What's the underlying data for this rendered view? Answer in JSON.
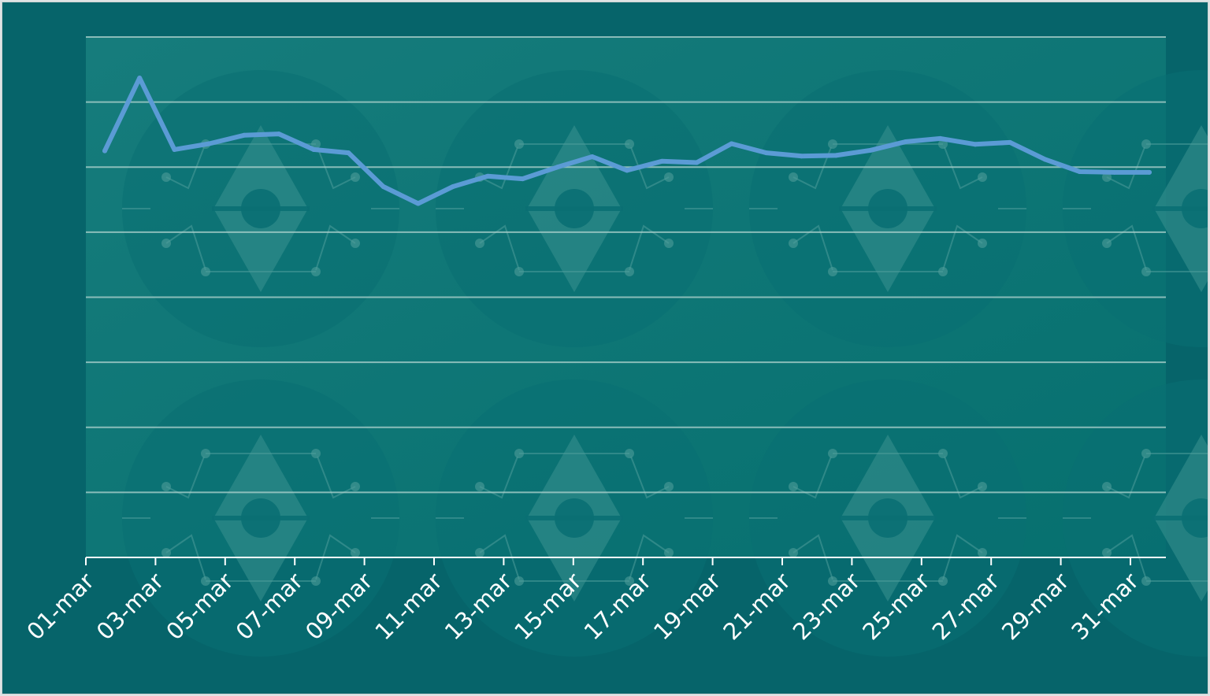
{
  "chart_data": {
    "type": "line",
    "title": "",
    "xlabel": "",
    "ylabel": "",
    "ylim": [
      0,
      8
    ],
    "y_ticks_shown": false,
    "grid": "horizontal",
    "x": [
      "01-mar",
      "02-mar",
      "03-mar",
      "04-mar",
      "05-mar",
      "06-mar",
      "07-mar",
      "08-mar",
      "09-mar",
      "10-mar",
      "11-mar",
      "12-mar",
      "13-mar",
      "14-mar",
      "15-mar",
      "16-mar",
      "17-mar",
      "18-mar",
      "19-mar",
      "20-mar",
      "21-mar",
      "22-mar",
      "23-mar",
      "24-mar",
      "25-mar",
      "26-mar",
      "27-mar",
      "28-mar",
      "29-mar",
      "30-mar",
      "31-mar"
    ],
    "x_tick_labels": [
      "01-mar",
      "03-mar",
      "05-mar",
      "07-mar",
      "09-mar",
      "11-mar",
      "13-mar",
      "15-mar",
      "17-mar",
      "19-mar",
      "21-mar",
      "23-mar",
      "25-mar",
      "27-mar",
      "29-mar",
      "31-mar"
    ],
    "series": [
      {
        "values": [
          6.25,
          7.37,
          6.27,
          6.36,
          6.49,
          6.51,
          6.27,
          6.22,
          5.7,
          5.44,
          5.7,
          5.86,
          5.82,
          6.0,
          6.16,
          5.95,
          6.09,
          6.07,
          6.36,
          6.22,
          6.17,
          6.18,
          6.26,
          6.39,
          6.44,
          6.35,
          6.38,
          6.12,
          5.93,
          5.92,
          5.92
        ],
        "color": "#5b9bd5"
      }
    ],
    "colors": {
      "background": "#06646a",
      "plot_area": "#127b7c",
      "gridline": "#a9cfcb",
      "axis": "#ffffff",
      "tick_label": "#ffffff"
    }
  }
}
